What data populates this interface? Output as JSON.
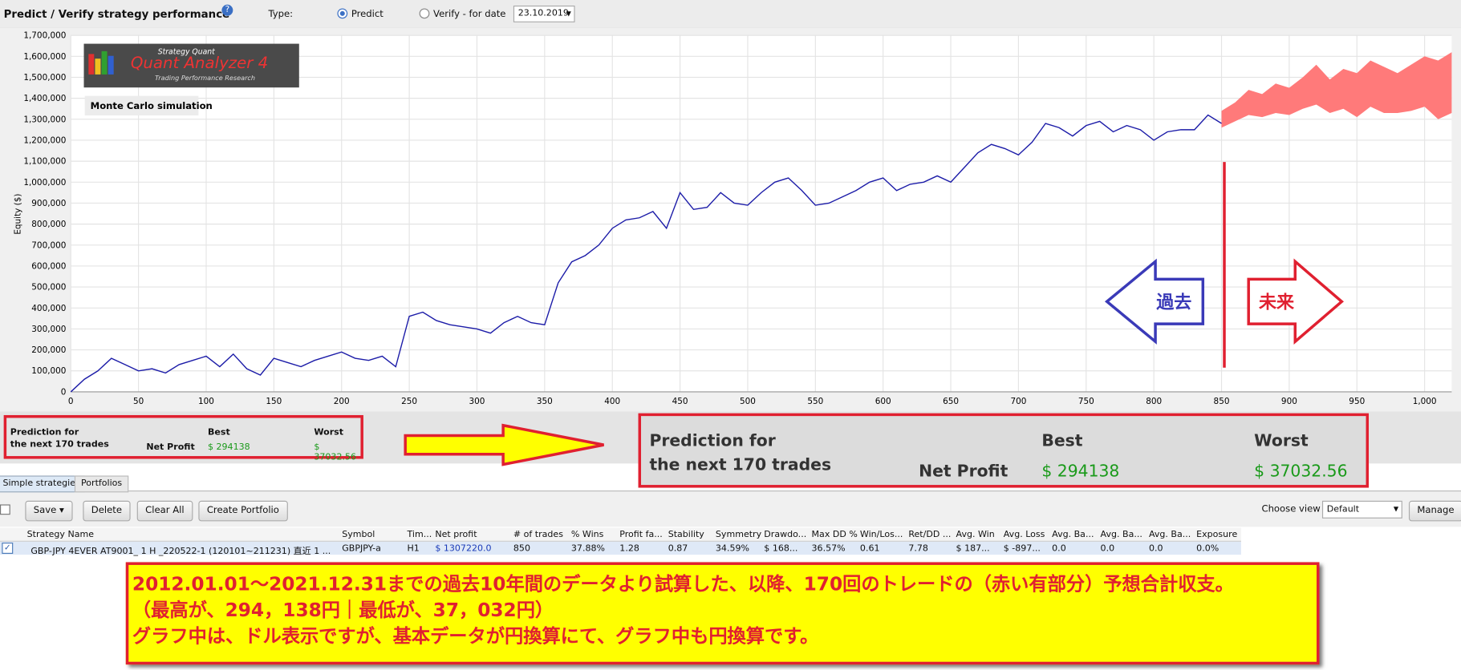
{
  "header": {
    "title": "Predict / Verify strategy performance",
    "type_label": "Type:",
    "predict": "Predict",
    "verify": "Verify - for date",
    "date": "23.10.2019"
  },
  "chart_data": {
    "type": "line",
    "y_label": "Equity ($)",
    "annotation": "Monte Carlo simulation",
    "logo": {
      "brand": "Strategy Quant",
      "product": "Quant Analyzer 4",
      "tagline": "Trading Performance    Research"
    },
    "past": "過去",
    "future": "未来",
    "xlim": [
      0,
      1020
    ],
    "xticks": [
      0,
      50,
      100,
      150,
      200,
      250,
      300,
      350,
      400,
      450,
      500,
      550,
      600,
      650,
      700,
      750,
      800,
      850,
      900,
      950,
      {
        "value": 1000,
        "label": "1,000"
      }
    ],
    "ylim": [
      0,
      1700000
    ],
    "yticks": [
      0,
      {
        "value": 100000,
        "label": "100,000"
      },
      {
        "value": 200000,
        "label": "200,000"
      },
      {
        "value": 300000,
        "label": "300,000"
      },
      {
        "value": 400000,
        "label": "400,000"
      },
      {
        "value": 500000,
        "label": "500,000"
      },
      {
        "value": 600000,
        "label": "600,000"
      },
      {
        "value": 700000,
        "label": "700,000"
      },
      {
        "value": 800000,
        "label": "800,000"
      },
      {
        "value": 900000,
        "label": "900,000"
      },
      {
        "value": 1000000,
        "label": "1,000,000"
      },
      {
        "value": 1100000,
        "label": "1,100,000"
      },
      {
        "value": 1200000,
        "label": "1,200,000"
      },
      {
        "value": 1300000,
        "label": "1,300,000"
      },
      {
        "value": 1400000,
        "label": "1,400,000"
      },
      {
        "value": 1500000,
        "label": "1,500,000"
      },
      {
        "value": 1600000,
        "label": "1,600,000"
      },
      {
        "value": 1700000,
        "label": "1,700,000"
      }
    ],
    "grid": true,
    "series": [
      {
        "color": "#1c1ca8",
        "x": [
          0,
          10,
          20,
          30,
          40,
          50,
          60,
          70,
          80,
          90,
          100,
          110,
          120,
          130,
          140,
          150,
          160,
          170,
          180,
          190,
          200,
          210,
          220,
          230,
          240,
          250,
          260,
          270,
          280,
          290,
          300,
          310,
          320,
          330,
          340,
          350,
          360,
          370,
          380,
          390,
          400,
          410,
          420,
          430,
          440,
          450,
          460,
          470,
          480,
          490,
          500,
          510,
          520,
          530,
          540,
          550,
          560,
          570,
          580,
          590,
          600,
          610,
          620,
          630,
          640,
          650,
          660,
          670,
          680,
          690,
          700,
          710,
          720,
          730,
          740,
          750,
          760,
          770,
          780,
          790,
          800,
          810,
          820,
          830,
          840,
          850
        ],
        "values": [
          0,
          60000,
          100000,
          160000,
          130000,
          100000,
          110000,
          90000,
          130000,
          150000,
          170000,
          120000,
          180000,
          110000,
          80000,
          160000,
          140000,
          120000,
          150000,
          170000,
          190000,
          160000,
          150000,
          170000,
          120000,
          360000,
          380000,
          340000,
          320000,
          310000,
          300000,
          280000,
          330000,
          360000,
          330000,
          320000,
          520000,
          620000,
          650000,
          700000,
          780000,
          820000,
          830000,
          860000,
          780000,
          950000,
          870000,
          880000,
          950000,
          900000,
          890000,
          950000,
          1000000,
          1020000,
          960000,
          890000,
          900000,
          930000,
          960000,
          1000000,
          1020000,
          960000,
          990000,
          1000000,
          1030000,
          1000000,
          1070000,
          1140000,
          1180000,
          1160000,
          1130000,
          1190000,
          1280000,
          1260000,
          1220000,
          1270000,
          1290000,
          1240000,
          1270000,
          1250000,
          1200000,
          1240000,
          1250000,
          1250000,
          1320000,
          1280000
        ]
      }
    ],
    "band": {
      "color": "#ff7a7a",
      "x": [
        850,
        860,
        870,
        880,
        890,
        900,
        910,
        920,
        930,
        940,
        950,
        960,
        970,
        980,
        990,
        1000,
        1010,
        1020
      ],
      "upper": [
        1340000,
        1380000,
        1440000,
        1420000,
        1470000,
        1450000,
        1500000,
        1560000,
        1490000,
        1540000,
        1520000,
        1580000,
        1550000,
        1520000,
        1560000,
        1600000,
        1580000,
        1620000
      ],
      "lower": [
        1260000,
        1290000,
        1320000,
        1310000,
        1330000,
        1320000,
        1350000,
        1370000,
        1330000,
        1350000,
        1310000,
        1360000,
        1330000,
        1330000,
        1340000,
        1360000,
        1300000,
        1330000
      ]
    }
  },
  "prediction": {
    "title_1": "Prediction for",
    "title_2": "the next 170 trades",
    "metric": "Net Profit",
    "best_label": "Best",
    "worst_label": "Worst",
    "best": "$ 294138",
    "worst": "$ 37032.56"
  },
  "tabs": [
    "Simple strategies",
    "Portfolios"
  ],
  "toolbar": {
    "save": "Save",
    "delete": "Delete",
    "clear_all": "Clear All",
    "create_portfolio": "Create Portfolio",
    "choose_view": "Choose view",
    "view": "Default",
    "manage": "Manage"
  },
  "table": {
    "columns": [
      "Strategy Name",
      "Symbol",
      "Tim...",
      "Net profit",
      "# of trades",
      "% Wins",
      "Profit fa...",
      "Stability",
      "Symmetry",
      "Drawdo...",
      "Max DD %",
      "Win/Los...",
      "Ret/DD ...",
      "Avg. Win",
      "Avg. Loss",
      "Avg. Ba...",
      "Avg. Ba...",
      "Avg. Ba...",
      "Exposure"
    ],
    "rows": [
      [
        "GBP-JPY 4EVER AT9001_ 1 H _220522-1 (120101~211231) 直近 1 ...",
        "GBPJPY-a",
        "H1",
        "$ 1307220.0",
        "850",
        "37.88%",
        "1.28",
        "0.87",
        "34.59%",
        "$ 168...",
        "36.57%",
        "0.61",
        "7.78",
        "$ 187...",
        "$ -897...",
        "0.0",
        "0.0",
        "0.0",
        "0.0%"
      ]
    ]
  },
  "note": [
    "2012.01.01～2021.12.31までの過去10年間のデータより試算した、以降、170回のトレードの（赤い有部分）予想合計収支。",
    "（最高が、294，138円｜最低が、37，032円）",
    "グラフ中は、ドル表示ですが、基本データが円換算にて、グラフ中も円換算です。"
  ]
}
